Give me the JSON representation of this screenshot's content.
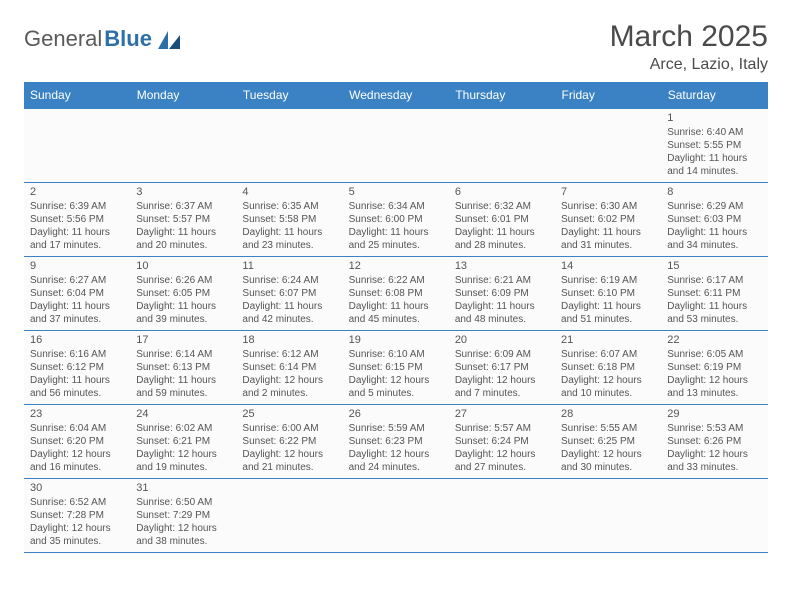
{
  "logo": {
    "word1": "General",
    "word2": "Blue"
  },
  "title": "March 2025",
  "location": "Arce, Lazio, Italy",
  "colors": {
    "header_bg": "#3b82c4",
    "header_text": "#ffffff",
    "text": "#555555",
    "border": "#3b82c4",
    "logo_gray": "#5a5a5a",
    "logo_blue": "#2f6fa8"
  },
  "weekdays": [
    "Sunday",
    "Monday",
    "Tuesday",
    "Wednesday",
    "Thursday",
    "Friday",
    "Saturday"
  ],
  "weeks": [
    [
      null,
      null,
      null,
      null,
      null,
      null,
      {
        "n": "1",
        "sr": "Sunrise: 6:40 AM",
        "ss": "Sunset: 5:55 PM",
        "d1": "Daylight: 11 hours",
        "d2": "and 14 minutes."
      }
    ],
    [
      {
        "n": "2",
        "sr": "Sunrise: 6:39 AM",
        "ss": "Sunset: 5:56 PM",
        "d1": "Daylight: 11 hours",
        "d2": "and 17 minutes."
      },
      {
        "n": "3",
        "sr": "Sunrise: 6:37 AM",
        "ss": "Sunset: 5:57 PM",
        "d1": "Daylight: 11 hours",
        "d2": "and 20 minutes."
      },
      {
        "n": "4",
        "sr": "Sunrise: 6:35 AM",
        "ss": "Sunset: 5:58 PM",
        "d1": "Daylight: 11 hours",
        "d2": "and 23 minutes."
      },
      {
        "n": "5",
        "sr": "Sunrise: 6:34 AM",
        "ss": "Sunset: 6:00 PM",
        "d1": "Daylight: 11 hours",
        "d2": "and 25 minutes."
      },
      {
        "n": "6",
        "sr": "Sunrise: 6:32 AM",
        "ss": "Sunset: 6:01 PM",
        "d1": "Daylight: 11 hours",
        "d2": "and 28 minutes."
      },
      {
        "n": "7",
        "sr": "Sunrise: 6:30 AM",
        "ss": "Sunset: 6:02 PM",
        "d1": "Daylight: 11 hours",
        "d2": "and 31 minutes."
      },
      {
        "n": "8",
        "sr": "Sunrise: 6:29 AM",
        "ss": "Sunset: 6:03 PM",
        "d1": "Daylight: 11 hours",
        "d2": "and 34 minutes."
      }
    ],
    [
      {
        "n": "9",
        "sr": "Sunrise: 6:27 AM",
        "ss": "Sunset: 6:04 PM",
        "d1": "Daylight: 11 hours",
        "d2": "and 37 minutes."
      },
      {
        "n": "10",
        "sr": "Sunrise: 6:26 AM",
        "ss": "Sunset: 6:05 PM",
        "d1": "Daylight: 11 hours",
        "d2": "and 39 minutes."
      },
      {
        "n": "11",
        "sr": "Sunrise: 6:24 AM",
        "ss": "Sunset: 6:07 PM",
        "d1": "Daylight: 11 hours",
        "d2": "and 42 minutes."
      },
      {
        "n": "12",
        "sr": "Sunrise: 6:22 AM",
        "ss": "Sunset: 6:08 PM",
        "d1": "Daylight: 11 hours",
        "d2": "and 45 minutes."
      },
      {
        "n": "13",
        "sr": "Sunrise: 6:21 AM",
        "ss": "Sunset: 6:09 PM",
        "d1": "Daylight: 11 hours",
        "d2": "and 48 minutes."
      },
      {
        "n": "14",
        "sr": "Sunrise: 6:19 AM",
        "ss": "Sunset: 6:10 PM",
        "d1": "Daylight: 11 hours",
        "d2": "and 51 minutes."
      },
      {
        "n": "15",
        "sr": "Sunrise: 6:17 AM",
        "ss": "Sunset: 6:11 PM",
        "d1": "Daylight: 11 hours",
        "d2": "and 53 minutes."
      }
    ],
    [
      {
        "n": "16",
        "sr": "Sunrise: 6:16 AM",
        "ss": "Sunset: 6:12 PM",
        "d1": "Daylight: 11 hours",
        "d2": "and 56 minutes."
      },
      {
        "n": "17",
        "sr": "Sunrise: 6:14 AM",
        "ss": "Sunset: 6:13 PM",
        "d1": "Daylight: 11 hours",
        "d2": "and 59 minutes."
      },
      {
        "n": "18",
        "sr": "Sunrise: 6:12 AM",
        "ss": "Sunset: 6:14 PM",
        "d1": "Daylight: 12 hours",
        "d2": "and 2 minutes."
      },
      {
        "n": "19",
        "sr": "Sunrise: 6:10 AM",
        "ss": "Sunset: 6:15 PM",
        "d1": "Daylight: 12 hours",
        "d2": "and 5 minutes."
      },
      {
        "n": "20",
        "sr": "Sunrise: 6:09 AM",
        "ss": "Sunset: 6:17 PM",
        "d1": "Daylight: 12 hours",
        "d2": "and 7 minutes."
      },
      {
        "n": "21",
        "sr": "Sunrise: 6:07 AM",
        "ss": "Sunset: 6:18 PM",
        "d1": "Daylight: 12 hours",
        "d2": "and 10 minutes."
      },
      {
        "n": "22",
        "sr": "Sunrise: 6:05 AM",
        "ss": "Sunset: 6:19 PM",
        "d1": "Daylight: 12 hours",
        "d2": "and 13 minutes."
      }
    ],
    [
      {
        "n": "23",
        "sr": "Sunrise: 6:04 AM",
        "ss": "Sunset: 6:20 PM",
        "d1": "Daylight: 12 hours",
        "d2": "and 16 minutes."
      },
      {
        "n": "24",
        "sr": "Sunrise: 6:02 AM",
        "ss": "Sunset: 6:21 PM",
        "d1": "Daylight: 12 hours",
        "d2": "and 19 minutes."
      },
      {
        "n": "25",
        "sr": "Sunrise: 6:00 AM",
        "ss": "Sunset: 6:22 PM",
        "d1": "Daylight: 12 hours",
        "d2": "and 21 minutes."
      },
      {
        "n": "26",
        "sr": "Sunrise: 5:59 AM",
        "ss": "Sunset: 6:23 PM",
        "d1": "Daylight: 12 hours",
        "d2": "and 24 minutes."
      },
      {
        "n": "27",
        "sr": "Sunrise: 5:57 AM",
        "ss": "Sunset: 6:24 PM",
        "d1": "Daylight: 12 hours",
        "d2": "and 27 minutes."
      },
      {
        "n": "28",
        "sr": "Sunrise: 5:55 AM",
        "ss": "Sunset: 6:25 PM",
        "d1": "Daylight: 12 hours",
        "d2": "and 30 minutes."
      },
      {
        "n": "29",
        "sr": "Sunrise: 5:53 AM",
        "ss": "Sunset: 6:26 PM",
        "d1": "Daylight: 12 hours",
        "d2": "and 33 minutes."
      }
    ],
    [
      {
        "n": "30",
        "sr": "Sunrise: 6:52 AM",
        "ss": "Sunset: 7:28 PM",
        "d1": "Daylight: 12 hours",
        "d2": "and 35 minutes."
      },
      {
        "n": "31",
        "sr": "Sunrise: 6:50 AM",
        "ss": "Sunset: 7:29 PM",
        "d1": "Daylight: 12 hours",
        "d2": "and 38 minutes."
      },
      null,
      null,
      null,
      null,
      null
    ]
  ]
}
